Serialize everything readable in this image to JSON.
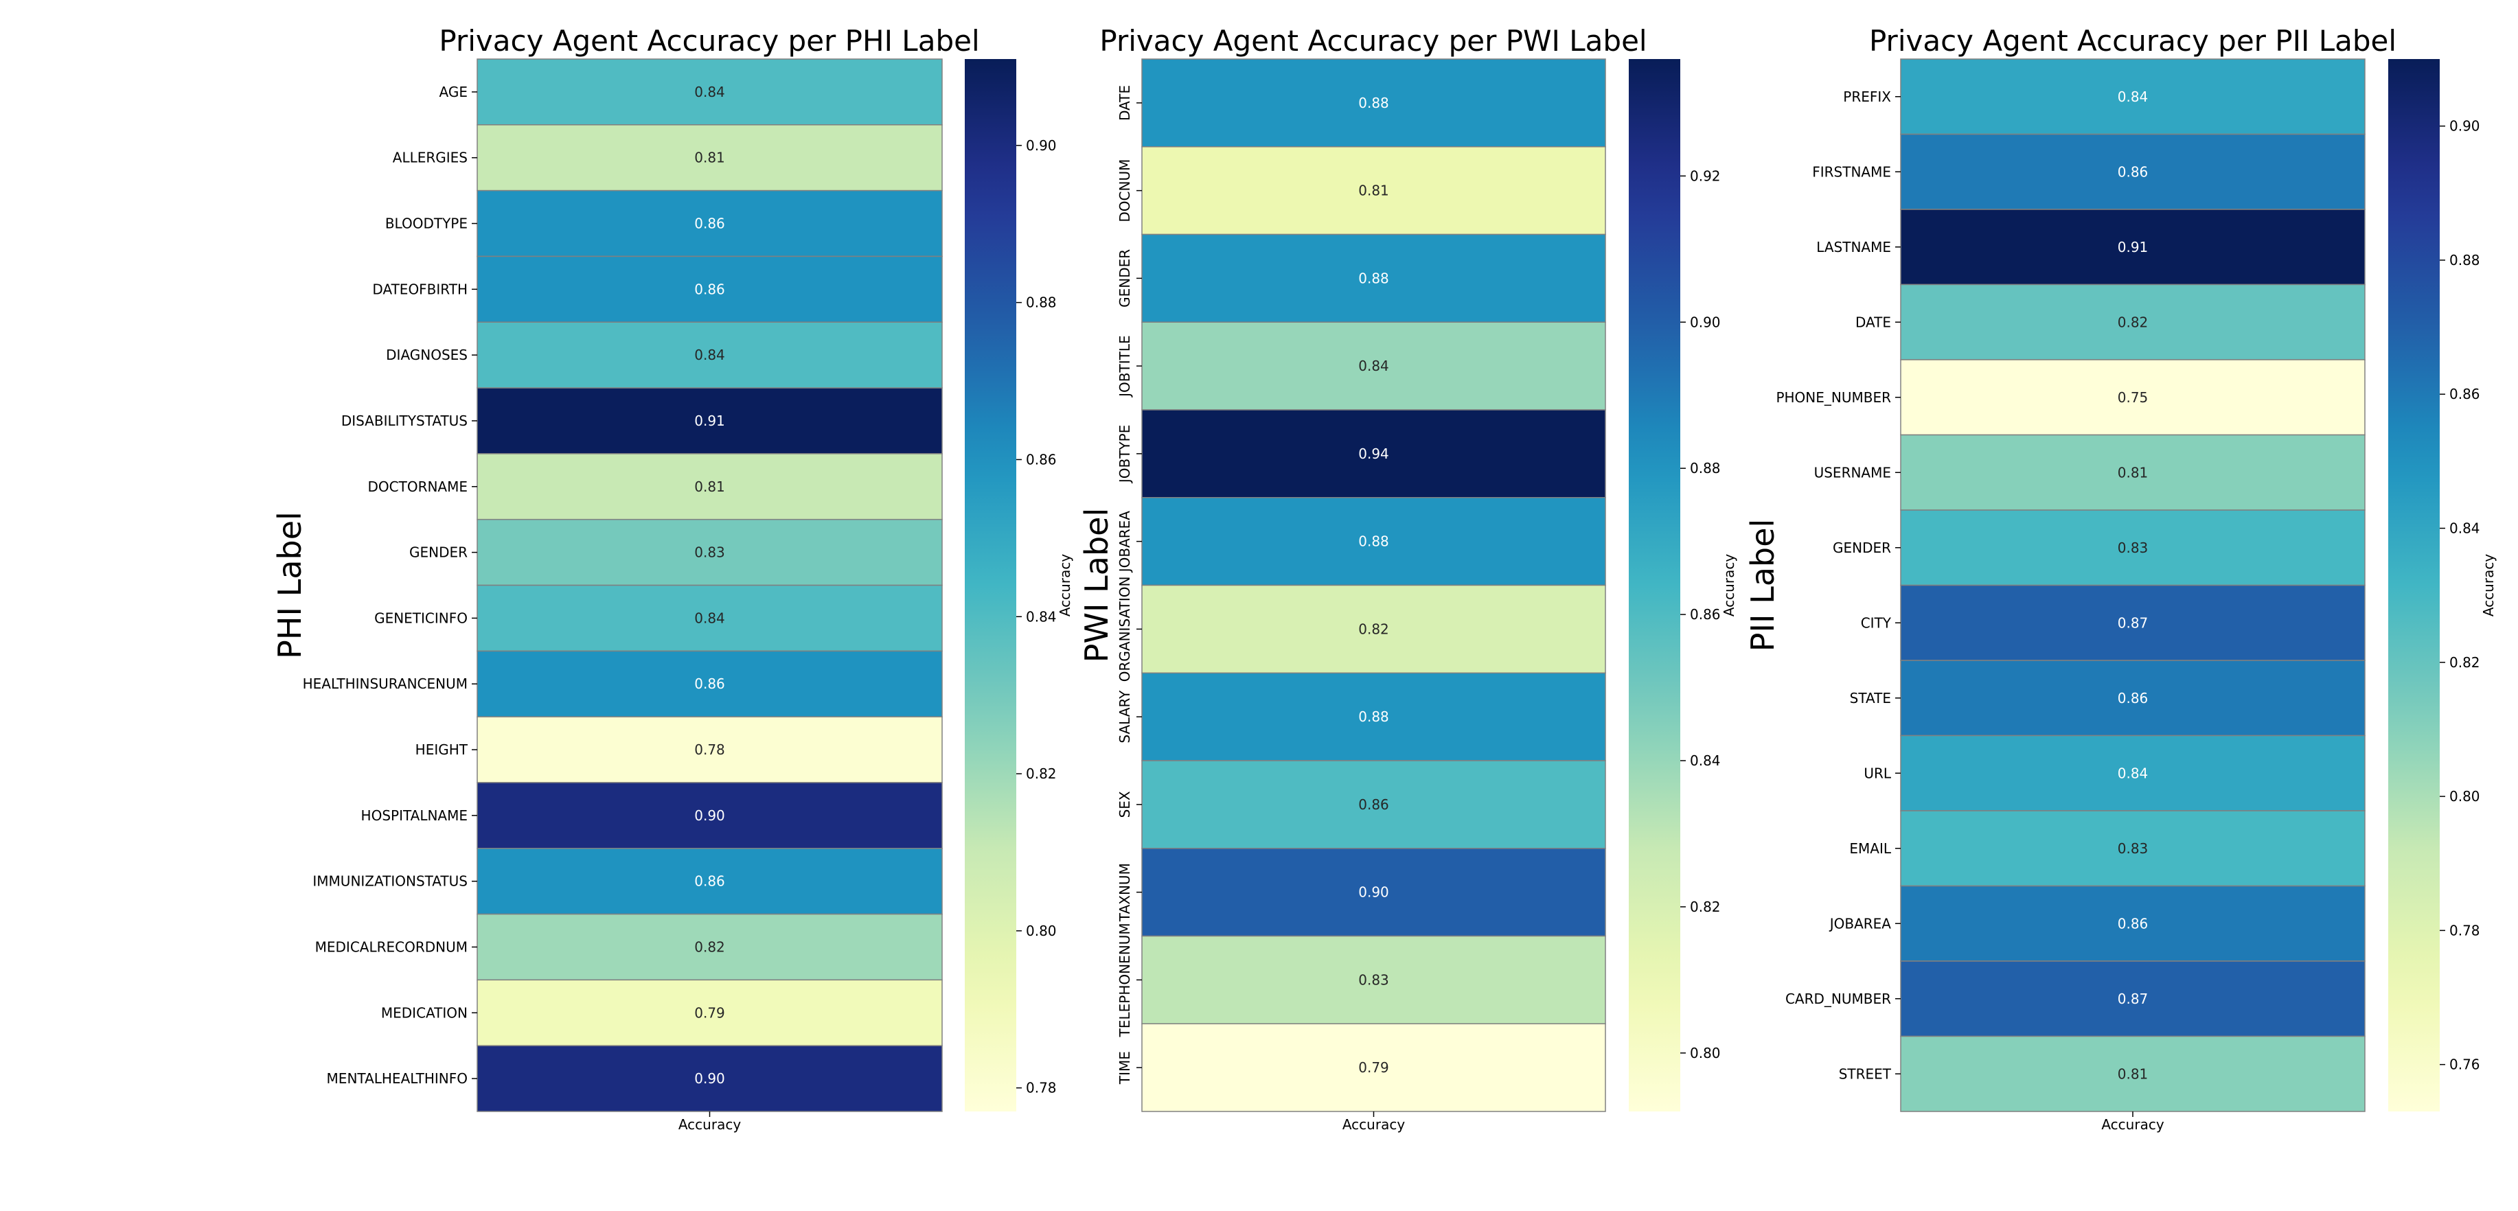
{
  "chart_data": [
    {
      "type": "heatmap",
      "title": "Privacy Agent Accuracy per PHI Label",
      "xlabel": "",
      "ylabel": "PHI Label",
      "x_categories": [
        "Accuracy"
      ],
      "y_categories": [
        "AGE",
        "ALLERGIES",
        "BLOODTYPE",
        "DATEOFBIRTH",
        "DIAGNOSES",
        "DISABILITYSTATUS",
        "DOCTORNAME",
        "GENDER",
        "GENETICINFO",
        "HEALTHINSURANCENUM",
        "HEIGHT",
        "HOSPITALNAME",
        "IMMUNIZATIONSTATUS",
        "MEDICALRECORDNUM",
        "MEDICATION",
        "MENTALHEALTHINFO"
      ],
      "values": [
        0.84,
        0.81,
        0.86,
        0.86,
        0.84,
        0.91,
        0.81,
        0.83,
        0.84,
        0.86,
        0.78,
        0.9,
        0.86,
        0.82,
        0.79,
        0.9
      ],
      "value_labels": [
        "0.84",
        "0.81",
        "0.86",
        "0.86",
        "0.84",
        "0.91",
        "0.81",
        "0.83",
        "0.84",
        "0.86",
        "0.78",
        "0.90",
        "0.86",
        "0.82",
        "0.79",
        "0.90"
      ],
      "y_tick_rotation": 0,
      "colormap": "YlGnBu",
      "colorbar": {
        "label": "Accuracy",
        "vmin": 0.777,
        "vmax": 0.911,
        "ticks": [
          0.78,
          0.8,
          0.82,
          0.84,
          0.86,
          0.88,
          0.9
        ],
        "tick_labels": [
          "0.78",
          "0.80",
          "0.82",
          "0.84",
          "0.86",
          "0.88",
          "0.90"
        ]
      }
    },
    {
      "type": "heatmap",
      "title": "Privacy Agent Accuracy per PWI Label",
      "xlabel": "",
      "ylabel": "PWI Label",
      "x_categories": [
        "Accuracy"
      ],
      "y_categories": [
        "DATE",
        "DOCNUM",
        "GENDER",
        "JOBTITLE",
        "JOBTYPE",
        "JOBAREA",
        "ORGANISATION",
        "SALARY",
        "SEX",
        "TAXNUM",
        "TELEPHONENUM",
        "TIME"
      ],
      "values": [
        0.88,
        0.81,
        0.88,
        0.84,
        0.94,
        0.88,
        0.82,
        0.88,
        0.86,
        0.9,
        0.83,
        0.79
      ],
      "value_labels": [
        "0.88",
        "0.81",
        "0.88",
        "0.84",
        "0.94",
        "0.88",
        "0.82",
        "0.88",
        "0.86",
        "0.90",
        "0.83",
        "0.79"
      ],
      "y_tick_rotation": 90,
      "colormap": "YlGnBu",
      "colorbar": {
        "label": "Accuracy",
        "vmin": 0.792,
        "vmax": 0.936,
        "ticks": [
          0.8,
          0.82,
          0.84,
          0.86,
          0.88,
          0.9,
          0.92
        ],
        "tick_labels": [
          "0.80",
          "0.82",
          "0.84",
          "0.86",
          "0.88",
          "0.90",
          "0.92"
        ]
      }
    },
    {
      "type": "heatmap",
      "title": "Privacy Agent Accuracy per PII Label",
      "xlabel": "",
      "ylabel": "PII Label",
      "x_categories": [
        "Accuracy"
      ],
      "y_categories": [
        "PREFIX",
        "FIRSTNAME",
        "LASTNAME",
        "DATE",
        "PHONE_NUMBER",
        "USERNAME",
        "GENDER",
        "CITY",
        "STATE",
        "URL",
        "EMAIL",
        "JOBAREA",
        "CARD_NUMBER",
        "STREET"
      ],
      "values": [
        0.84,
        0.86,
        0.91,
        0.82,
        0.75,
        0.81,
        0.83,
        0.87,
        0.86,
        0.84,
        0.83,
        0.86,
        0.87,
        0.81
      ],
      "value_labels": [
        "0.84",
        "0.86",
        "0.91",
        "0.82",
        "0.75",
        "0.81",
        "0.83",
        "0.87",
        "0.86",
        "0.84",
        "0.83",
        "0.86",
        "0.87",
        "0.81"
      ],
      "y_tick_rotation": 0,
      "colormap": "YlGnBu",
      "colorbar": {
        "label": "Accuracy",
        "vmin": 0.753,
        "vmax": 0.91,
        "ticks": [
          0.76,
          0.78,
          0.8,
          0.82,
          0.84,
          0.86,
          0.88,
          0.9
        ],
        "tick_labels": [
          "0.76",
          "0.78",
          "0.80",
          "0.82",
          "0.84",
          "0.86",
          "0.88",
          "0.90"
        ]
      }
    }
  ]
}
